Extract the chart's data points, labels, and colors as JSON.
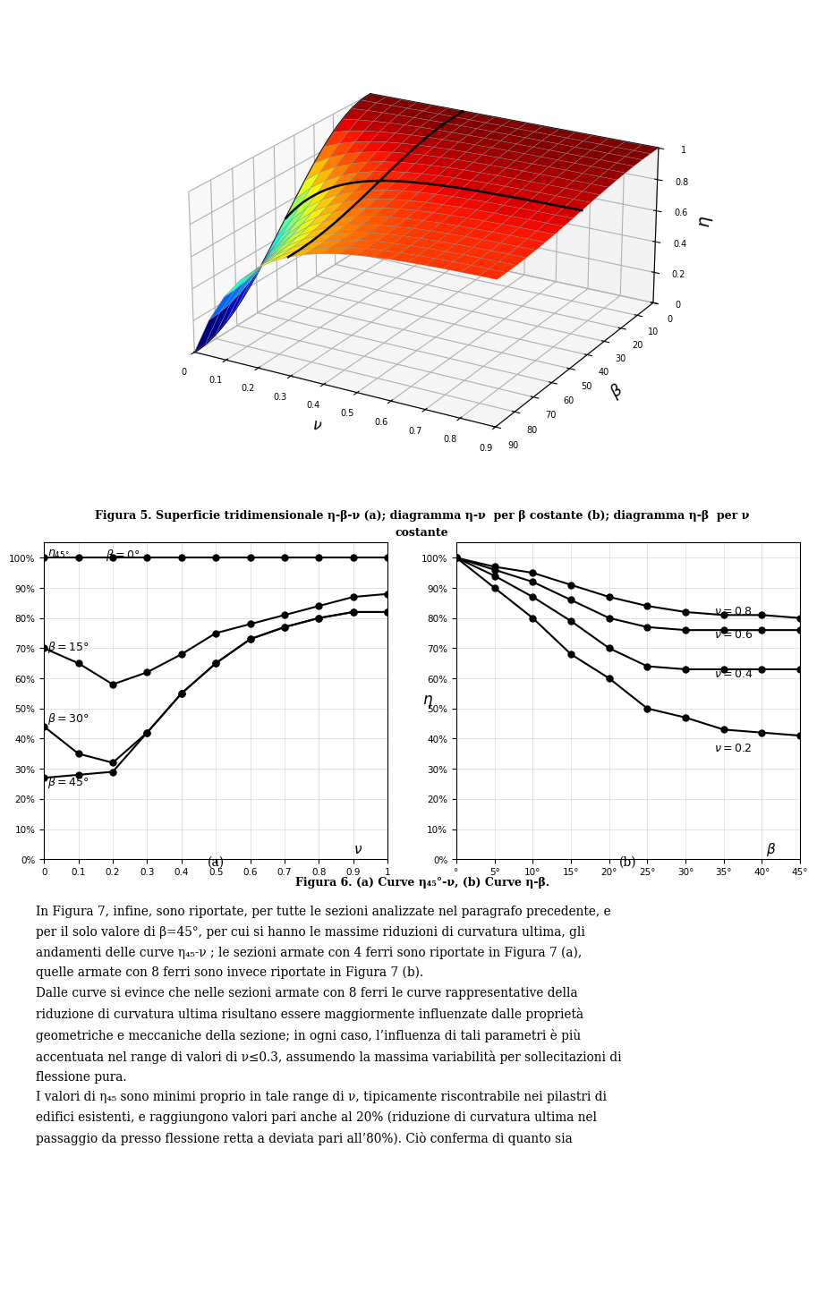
{
  "nu_values_a": [
    0,
    0.1,
    0.2,
    0.3,
    0.4,
    0.5,
    0.6,
    0.7,
    0.8,
    0.9,
    1.0
  ],
  "curve_a_beta0": [
    1.0,
    1.0,
    1.0,
    1.0,
    1.0,
    1.0,
    1.0,
    1.0,
    1.0,
    1.0,
    1.0
  ],
  "curve_a_beta15": [
    0.7,
    0.65,
    0.58,
    0.62,
    0.68,
    0.75,
    0.78,
    0.81,
    0.84,
    0.87,
    0.88
  ],
  "curve_a_beta30": [
    0.44,
    0.35,
    0.32,
    0.42,
    0.55,
    0.65,
    0.73,
    0.77,
    0.8,
    0.82,
    0.82
  ],
  "curve_a_beta45": [
    0.27,
    0.28,
    0.29,
    0.42,
    0.55,
    0.65,
    0.73,
    0.77,
    0.8,
    0.82,
    0.82
  ],
  "beta_axis_b": [
    0,
    5,
    10,
    15,
    20,
    25,
    30,
    35,
    40,
    45
  ],
  "curve_b_nu08": [
    1.0,
    0.97,
    0.95,
    0.91,
    0.87,
    0.84,
    0.82,
    0.81,
    0.81,
    0.8
  ],
  "curve_b_nu06": [
    1.0,
    0.96,
    0.92,
    0.86,
    0.8,
    0.77,
    0.76,
    0.76,
    0.76,
    0.76
  ],
  "curve_b_nu04": [
    1.0,
    0.94,
    0.87,
    0.79,
    0.7,
    0.64,
    0.63,
    0.63,
    0.63,
    0.63
  ],
  "curve_b_nu02": [
    1.0,
    0.9,
    0.8,
    0.68,
    0.6,
    0.5,
    0.47,
    0.43,
    0.42,
    0.41
  ],
  "fig5_caption_line1": "Figura 5. Superficie tridimensionale η-β-ν (a); diagramma η-ν  per β costante (b); diagramma η-β  per ν",
  "fig5_caption_line2": "costante",
  "fig6_caption": "Figura 6. (a) Curve η₄₅°-ν, (b) Curve η-β.",
  "text_lines": [
    "In Figura 7, infine, sono riportate, per tutte le sezioni analizzate nel paragrafo precedente, e",
    "per il solo valore di β=45°, per cui si hanno le massime riduzioni di curvatura ultima, gli",
    "andamenti delle curve η₄₅-ν ; le sezioni armate con 4 ferri sono riportate in Figura 7 (a),",
    "quelle armate con 8 ferri sono invece riportate in Figura 7 (b).",
    "Dalle curve si evince che nelle sezioni armate con 8 ferri le curve rappresentative della",
    "riduzione di curvatura ultima risultano essere maggiormente influenzate dalle proprietà",
    "geometriche e meccaniche della sezione; in ogni caso, l’influenza di tali parametri è più",
    "accentuata nel range di valori di ν≤0.3, assumendo la massima variabilità per sollecitazioni di",
    "flessione pura.",
    "I valori di η₄₅ sono minimi proprio in tale range di ν, tipicamente riscontrabile nei pilastri di",
    "edifici esistenti, e raggiungono valori pari anche al 20% (riduzione di curvatura ultima nel",
    "passaggio da presso flessione retta a deviata pari all’80%). Ciò conferma di quanto sia"
  ],
  "3d_elev": 22,
  "3d_azim": -60
}
